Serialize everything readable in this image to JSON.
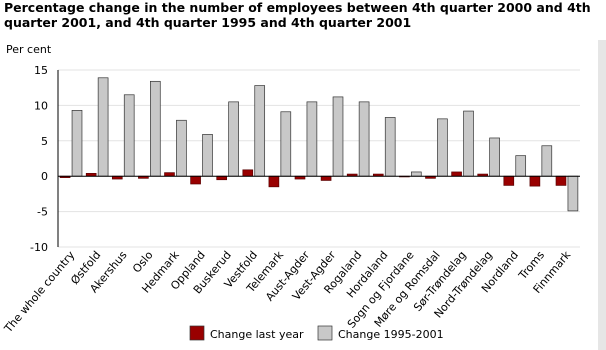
{
  "chart_data": {
    "type": "bar",
    "title": "Percentage change in the number of employees between 4th quarter 2000 and 4th quarter 2001, and 4th quarter 1995 and 4th quarter 2001",
    "y_label": "Per cent",
    "categories": [
      "The whole country",
      "Østfold",
      "Akershus",
      "Oslo",
      "Hedmark",
      "Oppland",
      "Buskerud",
      "Vestfold",
      "Telemark",
      "Aust-Agder",
      "Vest-Agder",
      "Rogaland",
      "Hordaland",
      "Sogn og Fjordane",
      "Møre og Romsdal",
      "Sør-Trøndelag",
      "Nord-Trøndelag",
      "Nordland",
      "Troms",
      "Finnmark"
    ],
    "series": [
      {
        "name": "Change last year",
        "color": "#990000",
        "values": [
          -0.2,
          0.4,
          -0.4,
          -0.3,
          0.5,
          -1.1,
          -0.5,
          0.9,
          -1.5,
          -0.4,
          -0.6,
          0.3,
          0.3,
          -0.1,
          -0.3,
          0.6,
          0.3,
          -1.3,
          -1.4,
          -1.3
        ]
      },
      {
        "name": "Change 1995-2001",
        "color": "#c8c8c8",
        "values": [
          9.3,
          13.9,
          11.5,
          13.4,
          7.9,
          5.9,
          10.5,
          12.8,
          9.1,
          10.5,
          11.2,
          10.5,
          8.3,
          0.6,
          8.1,
          9.2,
          5.4,
          2.9,
          4.3,
          -4.9
        ]
      }
    ],
    "ylim": [
      -10,
      15
    ],
    "yticks": [
      -10,
      -5,
      0,
      5,
      10,
      15
    ],
    "grid": true,
    "legend": "bottom"
  }
}
